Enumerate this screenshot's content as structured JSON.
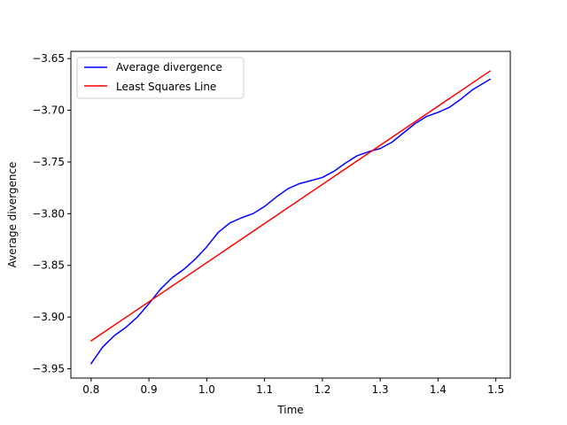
{
  "chart_data": {
    "type": "line",
    "title": "",
    "xlabel": "Time",
    "ylabel": "Average divergence",
    "xlim": [
      0.765,
      1.525
    ],
    "ylim": [
      -3.959,
      -3.643
    ],
    "xticks": [
      0.8,
      0.9,
      1.0,
      1.1,
      1.2,
      1.3,
      1.4,
      1.5
    ],
    "xtick_labels": [
      "0.8",
      "0.9",
      "1.0",
      "1.1",
      "1.2",
      "1.3",
      "1.4",
      "1.5"
    ],
    "yticks": [
      -3.95,
      -3.9,
      -3.85,
      -3.8,
      -3.75,
      -3.7,
      -3.65
    ],
    "ytick_labels": [
      "−3.95",
      "−3.90",
      "−3.85",
      "−3.80",
      "−3.75",
      "−3.70",
      "−3.65"
    ],
    "grid": false,
    "legend_position": "top-left",
    "series": [
      {
        "name": "Average divergence",
        "color": "#0000ff",
        "x": [
          0.8,
          0.82,
          0.84,
          0.86,
          0.88,
          0.9,
          0.92,
          0.94,
          0.96,
          0.98,
          1.0,
          1.02,
          1.04,
          1.06,
          1.08,
          1.1,
          1.12,
          1.14,
          1.16,
          1.18,
          1.2,
          1.22,
          1.24,
          1.26,
          1.28,
          1.3,
          1.32,
          1.34,
          1.36,
          1.38,
          1.4,
          1.42,
          1.44,
          1.46,
          1.49
        ],
        "y": [
          -3.945,
          -3.929,
          -3.918,
          -3.91,
          -3.9,
          -3.887,
          -3.873,
          -3.862,
          -3.854,
          -3.844,
          -3.832,
          -3.818,
          -3.809,
          -3.804,
          -3.8,
          -3.793,
          -3.784,
          -3.776,
          -3.771,
          -3.768,
          -3.765,
          -3.759,
          -3.751,
          -3.744,
          -3.74,
          -3.737,
          -3.731,
          -3.722,
          -3.713,
          -3.706,
          -3.702,
          -3.697,
          -3.689,
          -3.68,
          -3.67
        ]
      },
      {
        "name": "Least Squares Line",
        "color": "#ff0000",
        "x": [
          0.8,
          1.49
        ],
        "y": [
          -3.923,
          -3.662
        ]
      }
    ]
  }
}
